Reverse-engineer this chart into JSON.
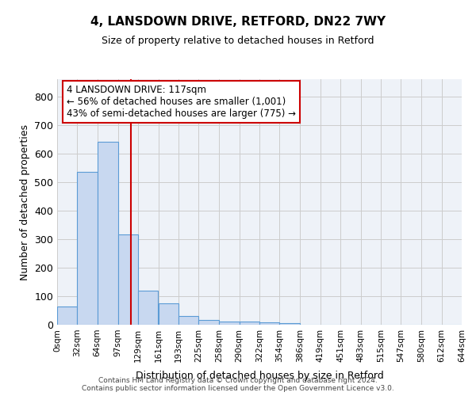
{
  "title_line1": "4, LANSDOWN DRIVE, RETFORD, DN22 7WY",
  "title_line2": "Size of property relative to detached houses in Retford",
  "xlabel": "Distribution of detached houses by size in Retford",
  "ylabel": "Number of detached properties",
  "bin_labels": [
    "0sqm",
    "32sqm",
    "64sqm",
    "97sqm",
    "129sqm",
    "161sqm",
    "193sqm",
    "225sqm",
    "258sqm",
    "290sqm",
    "322sqm",
    "354sqm",
    "386sqm",
    "419sqm",
    "451sqm",
    "483sqm",
    "515sqm",
    "547sqm",
    "580sqm",
    "612sqm",
    "644sqm"
  ],
  "bar_values": [
    65,
    535,
    640,
    315,
    118,
    75,
    30,
    16,
    10,
    10,
    7,
    5,
    0,
    0,
    0,
    0,
    0,
    0,
    0,
    0
  ],
  "bar_color": "#c8d8f0",
  "bar_edge_color": "#5b9bd5",
  "property_line_x": 117,
  "annotation_text": "4 LANSDOWN DRIVE: 117sqm\n← 56% of detached houses are smaller (1,001)\n43% of semi-detached houses are larger (775) →",
  "annotation_box_color": "#ffffff",
  "annotation_box_edge": "#cc0000",
  "vline_color": "#cc0000",
  "ylim": [
    0,
    860
  ],
  "yticks": [
    0,
    100,
    200,
    300,
    400,
    500,
    600,
    700,
    800
  ],
  "grid_color": "#cccccc",
  "bg_color": "#eef2f8",
  "footer_text": "Contains HM Land Registry data © Crown copyright and database right 2024.\nContains public sector information licensed under the Open Government Licence v3.0.",
  "bin_edges": [
    0,
    32,
    64,
    97,
    129,
    161,
    193,
    225,
    258,
    290,
    322,
    354,
    386,
    419,
    451,
    483,
    515,
    547,
    580,
    612,
    644
  ]
}
